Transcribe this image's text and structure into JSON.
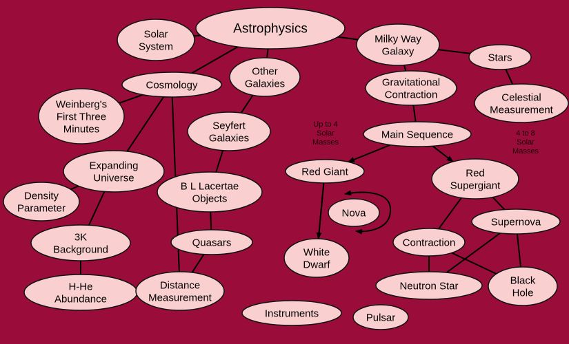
{
  "colors": {
    "background": "#9a0c3a",
    "node_fill": "#f9d0cf",
    "node_stroke": "#111111",
    "edge": "#000000"
  },
  "nodes": [
    {
      "id": "astrophysics",
      "lines": [
        "Astrophysics"
      ]
    },
    {
      "id": "solar-system",
      "lines": [
        "Solar",
        "System"
      ]
    },
    {
      "id": "milky-way-galaxy",
      "lines": [
        "Milky Way",
        "Galaxy"
      ]
    },
    {
      "id": "stars",
      "lines": [
        "Stars"
      ]
    },
    {
      "id": "cosmology",
      "lines": [
        "Cosmology"
      ]
    },
    {
      "id": "other-galaxies",
      "lines": [
        "Other",
        "Galaxies"
      ]
    },
    {
      "id": "gravitational-contraction",
      "lines": [
        "Gravitational",
        "Contraction"
      ]
    },
    {
      "id": "celestial-measurement",
      "lines": [
        "Celestial",
        "Measurement"
      ]
    },
    {
      "id": "weinbergs-first-three-minutes",
      "lines": [
        "Weinberg's",
        "First Three",
        "Minutes"
      ]
    },
    {
      "id": "seyfert-galaxies",
      "lines": [
        "Seyfert",
        "Galaxies"
      ]
    },
    {
      "id": "main-sequence",
      "lines": [
        "Main Sequence"
      ]
    },
    {
      "id": "expanding-universe",
      "lines": [
        "Expanding",
        "Universe"
      ]
    },
    {
      "id": "red-giant",
      "lines": [
        "Red Giant"
      ]
    },
    {
      "id": "red-supergiant",
      "lines": [
        "Red",
        "Supergiant"
      ]
    },
    {
      "id": "bl-lacertae-objects",
      "lines": [
        "B L Lacertae",
        "Objects"
      ]
    },
    {
      "id": "density-parameter",
      "lines": [
        "Density",
        "Parameter"
      ]
    },
    {
      "id": "nova",
      "lines": [
        "Nova"
      ]
    },
    {
      "id": "supernova",
      "lines": [
        "Supernova"
      ]
    },
    {
      "id": "3k-background",
      "lines": [
        "3K",
        "Background"
      ]
    },
    {
      "id": "quasars",
      "lines": [
        "Quasars"
      ]
    },
    {
      "id": "contraction",
      "lines": [
        "Contraction"
      ]
    },
    {
      "id": "white-dwarf",
      "lines": [
        "White",
        "Dwarf"
      ]
    },
    {
      "id": "h-he-abundance",
      "lines": [
        "H-He",
        "Abundance"
      ]
    },
    {
      "id": "distance-measurement",
      "lines": [
        "Distance",
        "Measurement"
      ]
    },
    {
      "id": "neutron-star",
      "lines": [
        "Neutron Star"
      ]
    },
    {
      "id": "black-hole",
      "lines": [
        "Black",
        "Hole"
      ]
    },
    {
      "id": "instruments",
      "lines": [
        "Instruments"
      ]
    },
    {
      "id": "pulsar",
      "lines": [
        "Pulsar"
      ]
    }
  ],
  "annotations": [
    {
      "id": "up-to-4-solar-masses",
      "lines": [
        "Up to 4",
        "Solar",
        "Masses"
      ]
    },
    {
      "id": "4-to-8-solar-masses",
      "lines": [
        "4 to 8",
        "Solar",
        "Masses"
      ]
    }
  ],
  "edges": [
    {
      "from": "astrophysics",
      "to": "solar-system"
    },
    {
      "from": "astrophysics",
      "to": "milky-way-galaxy"
    },
    {
      "from": "astrophysics",
      "to": "cosmology"
    },
    {
      "from": "astrophysics",
      "to": "other-galaxies"
    },
    {
      "from": "milky-way-galaxy",
      "to": "stars"
    },
    {
      "from": "milky-way-galaxy",
      "to": "gravitational-contraction"
    },
    {
      "from": "stars",
      "to": "celestial-measurement"
    },
    {
      "from": "gravitational-contraction",
      "to": "main-sequence"
    },
    {
      "from": "cosmology",
      "to": "weinbergs-first-three-minutes"
    },
    {
      "from": "cosmology",
      "to": "expanding-universe"
    },
    {
      "from": "cosmology",
      "to": "distance-measurement"
    },
    {
      "from": "other-galaxies",
      "to": "seyfert-galaxies"
    },
    {
      "from": "seyfert-galaxies",
      "to": "bl-lacertae-objects"
    },
    {
      "from": "bl-lacertae-objects",
      "to": "quasars"
    },
    {
      "from": "quasars",
      "to": "distance-measurement"
    },
    {
      "from": "expanding-universe",
      "to": "density-parameter"
    },
    {
      "from": "expanding-universe",
      "to": "3k-background"
    },
    {
      "from": "3k-background",
      "to": "h-he-abundance"
    },
    {
      "from": "main-sequence",
      "to": "red-giant",
      "arrow": true
    },
    {
      "from": "main-sequence",
      "to": "red-supergiant",
      "arrow": true
    },
    {
      "from": "red-giant",
      "to": "white-dwarf",
      "arrow": true
    },
    {
      "from": "white-dwarf",
      "to": "red-giant"
    },
    {
      "from": "red-supergiant",
      "to": "contraction"
    },
    {
      "from": "red-supergiant",
      "to": "supernova"
    },
    {
      "from": "contraction",
      "to": "neutron-star"
    },
    {
      "from": "contraction",
      "to": "black-hole"
    },
    {
      "from": "supernova",
      "to": "neutron-star"
    },
    {
      "from": "supernova",
      "to": "black-hole"
    }
  ]
}
